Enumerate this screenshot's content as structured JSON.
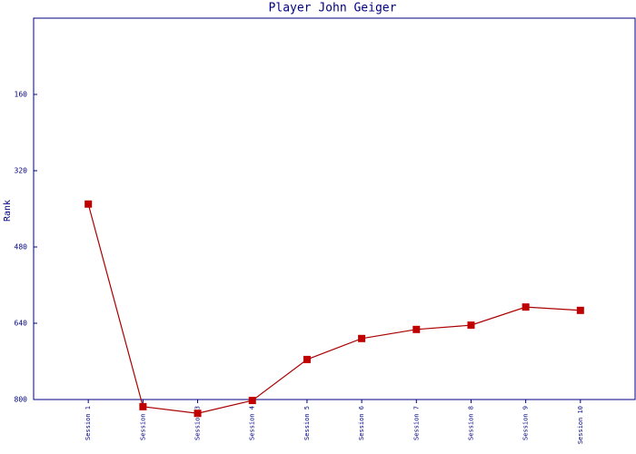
{
  "chart_data": {
    "type": "line",
    "title": "Player John Geiger",
    "y_label": "Rank",
    "categories": [
      "Session 1",
      "Session 2",
      "Session 3",
      "Session 4",
      "Session 5",
      "Session 6",
      "Session 7",
      "Session 8",
      "Session 9",
      "Session 10"
    ],
    "series": [
      {
        "name": "Rank",
        "color": "#aa0000",
        "values": [
          390,
          815,
          829,
          802,
          716,
          672,
          653,
          644,
          606,
          613
        ]
      }
    ],
    "ylim": [
      800,
      0
    ],
    "yticks": [
      160,
      320,
      480,
      640,
      800
    ],
    "grid": false
  }
}
